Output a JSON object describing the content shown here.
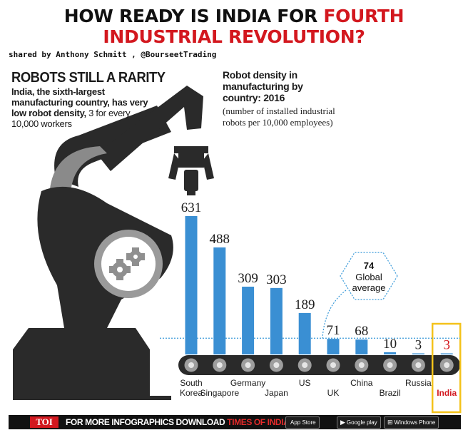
{
  "headline": {
    "line1": "HOW READY IS INDIA FOR",
    "line1_red": "FOURTH",
    "line2": "INDUSTRIAL REVOLUTION?"
  },
  "credit": "shared by Anthony Schmitt , @BourseetTrading",
  "left_panel": {
    "title": "ROBOTS STILL A RARITY",
    "desc_bold": "India, the sixth-largest manufacturing country, has very low robot density,",
    "desc_normal": " 3 for every 10,000 workers"
  },
  "chart_data": {
    "type": "bar",
    "title": "Robot density in manufacturing by country: 2016",
    "subtitle": "(number of installed industrial robots per 10,000 employees)",
    "categories": [
      "South Korea",
      "Singapore",
      "Germany",
      "Japan",
      "US",
      "UK",
      "China",
      "Brazil",
      "Russia",
      "India"
    ],
    "values": [
      631,
      488,
      309,
      303,
      189,
      71,
      68,
      10,
      3,
      3
    ],
    "value_labels": [
      "631",
      "488",
      "309",
      "303",
      "189",
      "71",
      "68",
      "10",
      "3",
      "3"
    ],
    "label_lines": [
      [
        "South",
        "Korea"
      ],
      [
        "Singapore"
      ],
      [
        "Germany"
      ],
      [
        "Japan"
      ],
      [
        "US"
      ],
      [
        "UK"
      ],
      [
        "China"
      ],
      [
        "Brazil"
      ],
      [
        "Russia"
      ],
      [
        "India"
      ]
    ],
    "reference_line": {
      "value": 74,
      "label_value": "74",
      "label_line1": "Global",
      "label_line2": "average"
    },
    "highlight": "India",
    "ylim": [
      0,
      631
    ],
    "grid": false,
    "bar_color": "#3a8fd3",
    "highlight_color": "#d3181f"
  },
  "footer": {
    "logo": "TOI",
    "text": "FOR MORE  INFOGRAPHICS DOWNLOAD ",
    "app_text": "TIMES OF INDIA APP",
    "stores": [
      {
        "icon": "apple-icon",
        "glyph": "",
        "label": "App Store"
      },
      {
        "icon": "google-play-icon",
        "glyph": "▶",
        "label": "Google play"
      },
      {
        "icon": "windows-icon",
        "glyph": "⊞",
        "label": "Windows Phone"
      }
    ]
  }
}
